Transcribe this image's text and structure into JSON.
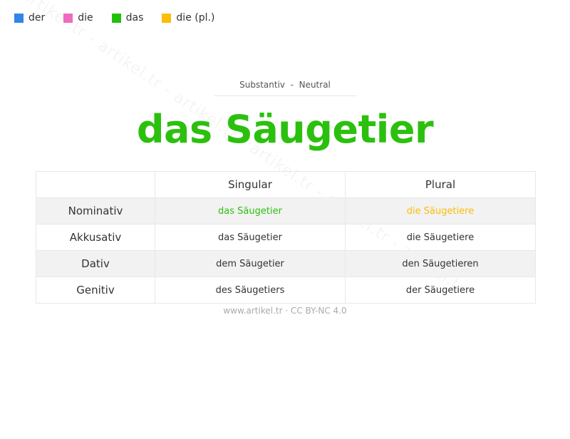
{
  "watermark": "artikel.tr - artikel.tr - artikel.tr - artikel.tr - artikel.tr - artikel.tr",
  "legend": [
    {
      "label": "der",
      "color": "#2f86e6"
    },
    {
      "label": "die",
      "color": "#f06ac0"
    },
    {
      "label": "das",
      "color": "#22c00c"
    },
    {
      "label": "die (pl.)",
      "color": "#fbbd08"
    }
  ],
  "subtitle": "Substantiv  -  Neutral",
  "title": "das Säugetier",
  "title_color": "#2cc00e",
  "table": {
    "headers": [
      "",
      "Singular",
      "Plural"
    ],
    "rows": [
      {
        "case": "Nominativ",
        "singular": "das Säugetier",
        "plural": "die Säugetiere"
      },
      {
        "case": "Akkusativ",
        "singular": "das Säugetier",
        "plural": "die Säugetiere"
      },
      {
        "case": "Dativ",
        "singular": "dem Säugetier",
        "plural": "den Säugetieren"
      },
      {
        "case": "Genitiv",
        "singular": "des Säugetiers",
        "plural": "der Säugetiere"
      }
    ]
  },
  "footer": "www.artikel.tr · CC BY-NC 4.0"
}
